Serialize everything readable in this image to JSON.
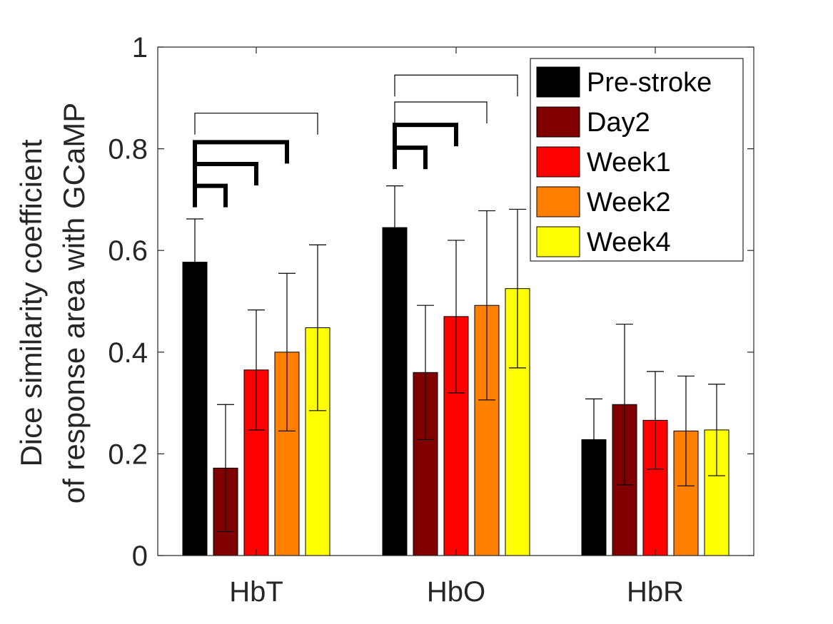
{
  "chart_data": {
    "type": "bar",
    "categories": [
      "HbT",
      "HbO",
      "HbR"
    ],
    "series": [
      {
        "name": "Pre-stroke",
        "color": "#000000",
        "values": [
          0.577,
          0.645,
          0.228
        ],
        "error": [
          0.085,
          0.082,
          0.08
        ]
      },
      {
        "name": "Day2",
        "color": "#800000",
        "values": [
          0.172,
          0.36,
          0.297
        ],
        "error": [
          0.125,
          0.132,
          0.158
        ]
      },
      {
        "name": "Week1",
        "color": "#ff0000",
        "values": [
          0.365,
          0.47,
          0.266
        ],
        "error": [
          0.118,
          0.15,
          0.096
        ]
      },
      {
        "name": "Week2",
        "color": "#ff8000",
        "values": [
          0.4,
          0.492,
          0.245
        ],
        "error": [
          0.155,
          0.186,
          0.108
        ]
      },
      {
        "name": "Week4",
        "color": "#ffff00",
        "values": [
          0.448,
          0.525,
          0.247
        ],
        "error": [
          0.163,
          0.156,
          0.09
        ]
      }
    ],
    "ylabel": [
      "Dice similarity coefficient",
      "of response area with GCaMP"
    ],
    "xlabel": "",
    "ylim": [
      0,
      1
    ],
    "yticks": [
      "0",
      "0.2",
      "0.4",
      "0.6",
      "0.8",
      "1"
    ],
    "legend_position": "top-right",
    "significance": [
      {
        "category": 0,
        "from": 0,
        "to": 1,
        "y": 0.727,
        "style": "thick"
      },
      {
        "category": 0,
        "from": 0,
        "to": 2,
        "y": 0.77,
        "style": "thick"
      },
      {
        "category": 0,
        "from": 0,
        "to": 3,
        "y": 0.813,
        "style": "thick"
      },
      {
        "category": 0,
        "from": 0,
        "to": 4,
        "y": 0.87,
        "style": "thin"
      },
      {
        "category": 1,
        "from": 0,
        "to": 1,
        "y": 0.802,
        "style": "thick"
      },
      {
        "category": 1,
        "from": 0,
        "to": 2,
        "y": 0.847,
        "style": "thick"
      },
      {
        "category": 1,
        "from": 0,
        "to": 3,
        "y": 0.892,
        "style": "thin"
      },
      {
        "category": 1,
        "from": 0,
        "to": 4,
        "y": 0.945,
        "style": "thin"
      }
    ]
  }
}
